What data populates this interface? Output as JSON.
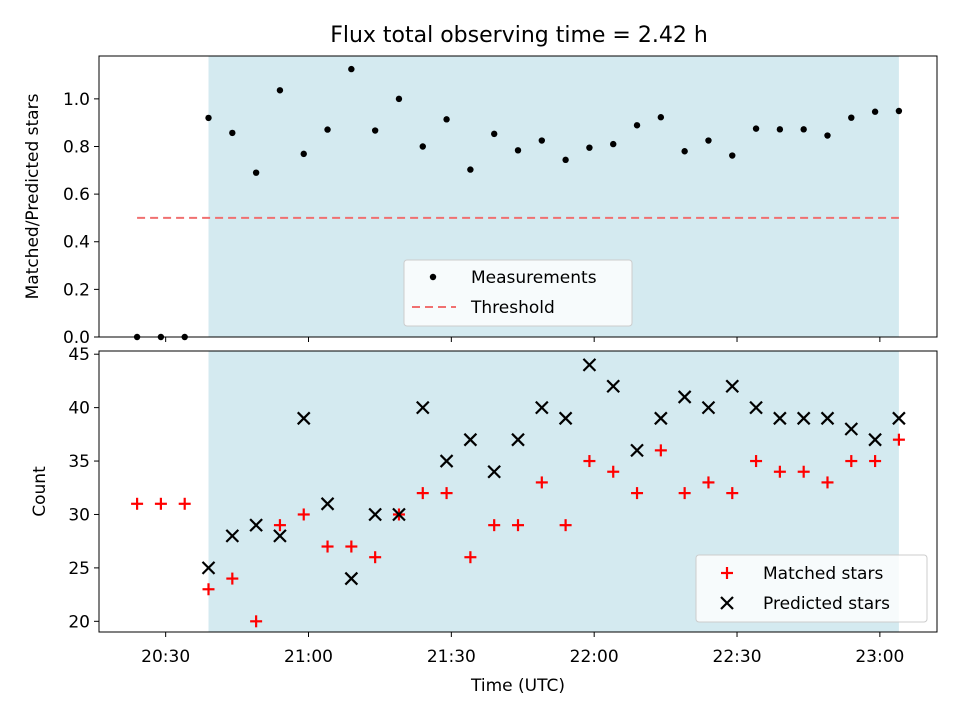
{
  "title": "Flux total observing time = 2.42 h",
  "colors": {
    "shade": "#d4eaf0",
    "measurement": "#000000",
    "threshold": "#f07070",
    "matched": "#ff0000",
    "predicted": "#000000"
  },
  "chart_data": [
    {
      "type": "scatter",
      "ylabel": "Matched/Predicted stars",
      "ylim": [
        0,
        1.18
      ],
      "yticks": [
        0.0,
        0.2,
        0.4,
        0.6,
        0.8,
        1.0
      ],
      "ytick_labels": [
        "0.0",
        "0.2",
        "0.4",
        "0.6",
        "0.8",
        "1.0"
      ],
      "xlim": [
        "20:16",
        "23:12"
      ],
      "x_tick_labels_shown": false,
      "shaded_region": [
        "20:39",
        "23:04"
      ],
      "legend_position": "lower center",
      "series": [
        {
          "name": "Measurements",
          "marker": "dot",
          "x": [
            "20:24",
            "20:29",
            "20:34",
            "20:39",
            "20:44",
            "20:49",
            "20:54",
            "20:59",
            "21:04",
            "21:09",
            "21:14",
            "21:19",
            "21:24",
            "21:29",
            "21:34",
            "21:39",
            "21:44",
            "21:49",
            "21:54",
            "21:59",
            "22:04",
            "22:09",
            "22:14",
            "22:19",
            "22:24",
            "22:29",
            "22:34",
            "22:39",
            "22:44",
            "22:49",
            "22:54",
            "22:59",
            "23:04"
          ],
          "values": [
            0.0,
            0.0,
            0.0,
            0.92,
            0.857,
            0.69,
            1.036,
            0.769,
            0.871,
            1.125,
            0.867,
            1.0,
            0.8,
            0.914,
            0.703,
            0.853,
            0.784,
            0.825,
            0.744,
            0.795,
            0.81,
            0.889,
            0.923,
            0.78,
            0.825,
            0.762,
            0.875,
            0.872,
            0.872,
            0.846,
            0.921,
            0.946,
            0.949
          ]
        },
        {
          "name": "Threshold",
          "marker": "dashed-line",
          "x": [
            "20:24",
            "23:04"
          ],
          "values": [
            0.5,
            0.5
          ]
        }
      ]
    },
    {
      "type": "scatter",
      "xlabel": "Time (UTC)",
      "ylabel": "Count",
      "ylim": [
        19,
        45.3
      ],
      "yticks": [
        20,
        25,
        30,
        35,
        40,
        45
      ],
      "ytick_labels": [
        "20",
        "25",
        "30",
        "35",
        "40",
        "45"
      ],
      "xlim": [
        "20:16",
        "23:12"
      ],
      "xticks": [
        "20:30",
        "21:00",
        "21:30",
        "22:00",
        "22:30",
        "23:00"
      ],
      "shaded_region": [
        "20:39",
        "23:04"
      ],
      "legend_position": "lower right",
      "series": [
        {
          "name": "Matched stars",
          "marker": "plus",
          "x": [
            "20:24",
            "20:29",
            "20:34",
            "20:39",
            "20:44",
            "20:49",
            "20:54",
            "20:59",
            "21:04",
            "21:09",
            "21:14",
            "21:19",
            "21:24",
            "21:29",
            "21:34",
            "21:39",
            "21:44",
            "21:49",
            "21:54",
            "21:59",
            "22:04",
            "22:09",
            "22:14",
            "22:19",
            "22:24",
            "22:29",
            "22:34",
            "22:39",
            "22:44",
            "22:49",
            "22:54",
            "22:59",
            "23:04"
          ],
          "values": [
            31,
            31,
            31,
            23,
            24,
            20,
            29,
            30,
            27,
            27,
            26,
            30,
            32,
            32,
            26,
            29,
            29,
            33,
            29,
            35,
            34,
            32,
            36,
            32,
            33,
            32,
            35,
            34,
            34,
            33,
            35,
            35,
            37
          ]
        },
        {
          "name": "Predicted stars",
          "marker": "x",
          "x": [
            "20:39",
            "20:44",
            "20:49",
            "20:54",
            "20:59",
            "21:04",
            "21:09",
            "21:14",
            "21:19",
            "21:24",
            "21:29",
            "21:34",
            "21:39",
            "21:44",
            "21:49",
            "21:54",
            "21:59",
            "22:04",
            "22:09",
            "22:14",
            "22:19",
            "22:24",
            "22:29",
            "22:34",
            "22:39",
            "22:44",
            "22:49",
            "22:54",
            "22:59",
            "23:04"
          ],
          "values": [
            25,
            28,
            29,
            28,
            39,
            31,
            24,
            30,
            30,
            40,
            35,
            37,
            34,
            37,
            40,
            39,
            44,
            42,
            36,
            39,
            41,
            40,
            42,
            40,
            39,
            39,
            39,
            38,
            37,
            39
          ]
        }
      ]
    }
  ]
}
